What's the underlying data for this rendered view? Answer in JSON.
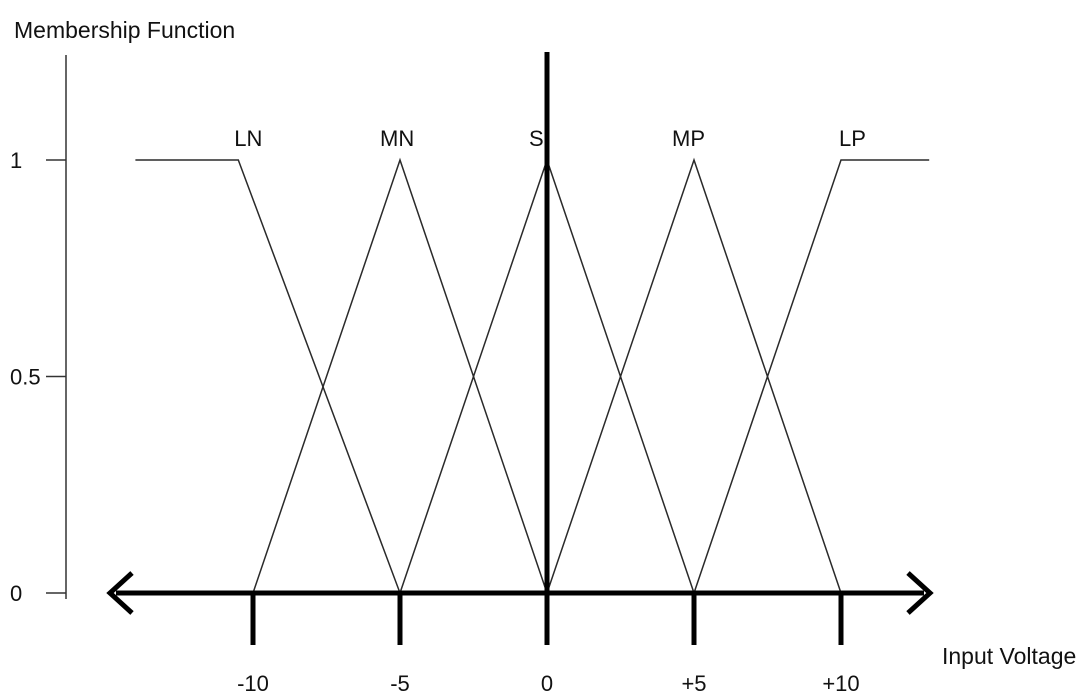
{
  "chart_data": {
    "type": "line",
    "ylabel": "Membership Function",
    "xlabel": "Input Voltage",
    "x_ticks": [
      {
        "value": -10,
        "label": "-10"
      },
      {
        "value": -5,
        "label": "-5"
      },
      {
        "value": 0,
        "label": "0"
      },
      {
        "value": 5,
        "label": "+5"
      },
      {
        "value": 10,
        "label": "+10"
      }
    ],
    "y_ticks": [
      {
        "value": 0,
        "label": "0"
      },
      {
        "value": 0.5,
        "label": "0.5"
      },
      {
        "value": 1,
        "label": "1"
      }
    ],
    "ylim": [
      0,
      1
    ],
    "grid": false,
    "series": [
      {
        "name": "LN",
        "points": [
          [
            -14,
            1
          ],
          [
            -10.5,
            1
          ],
          [
            -5,
            0
          ]
        ]
      },
      {
        "name": "MN",
        "points": [
          [
            -10,
            0
          ],
          [
            -5,
            1
          ],
          [
            0,
            0
          ]
        ]
      },
      {
        "name": "S",
        "points": [
          [
            -5,
            0
          ],
          [
            0,
            1
          ],
          [
            5,
            0
          ]
        ]
      },
      {
        "name": "MP",
        "points": [
          [
            0,
            0
          ],
          [
            5,
            1
          ],
          [
            10,
            0
          ]
        ]
      },
      {
        "name": "LP",
        "points": [
          [
            5,
            0
          ],
          [
            10,
            1
          ],
          [
            13,
            1
          ]
        ]
      }
    ]
  }
}
